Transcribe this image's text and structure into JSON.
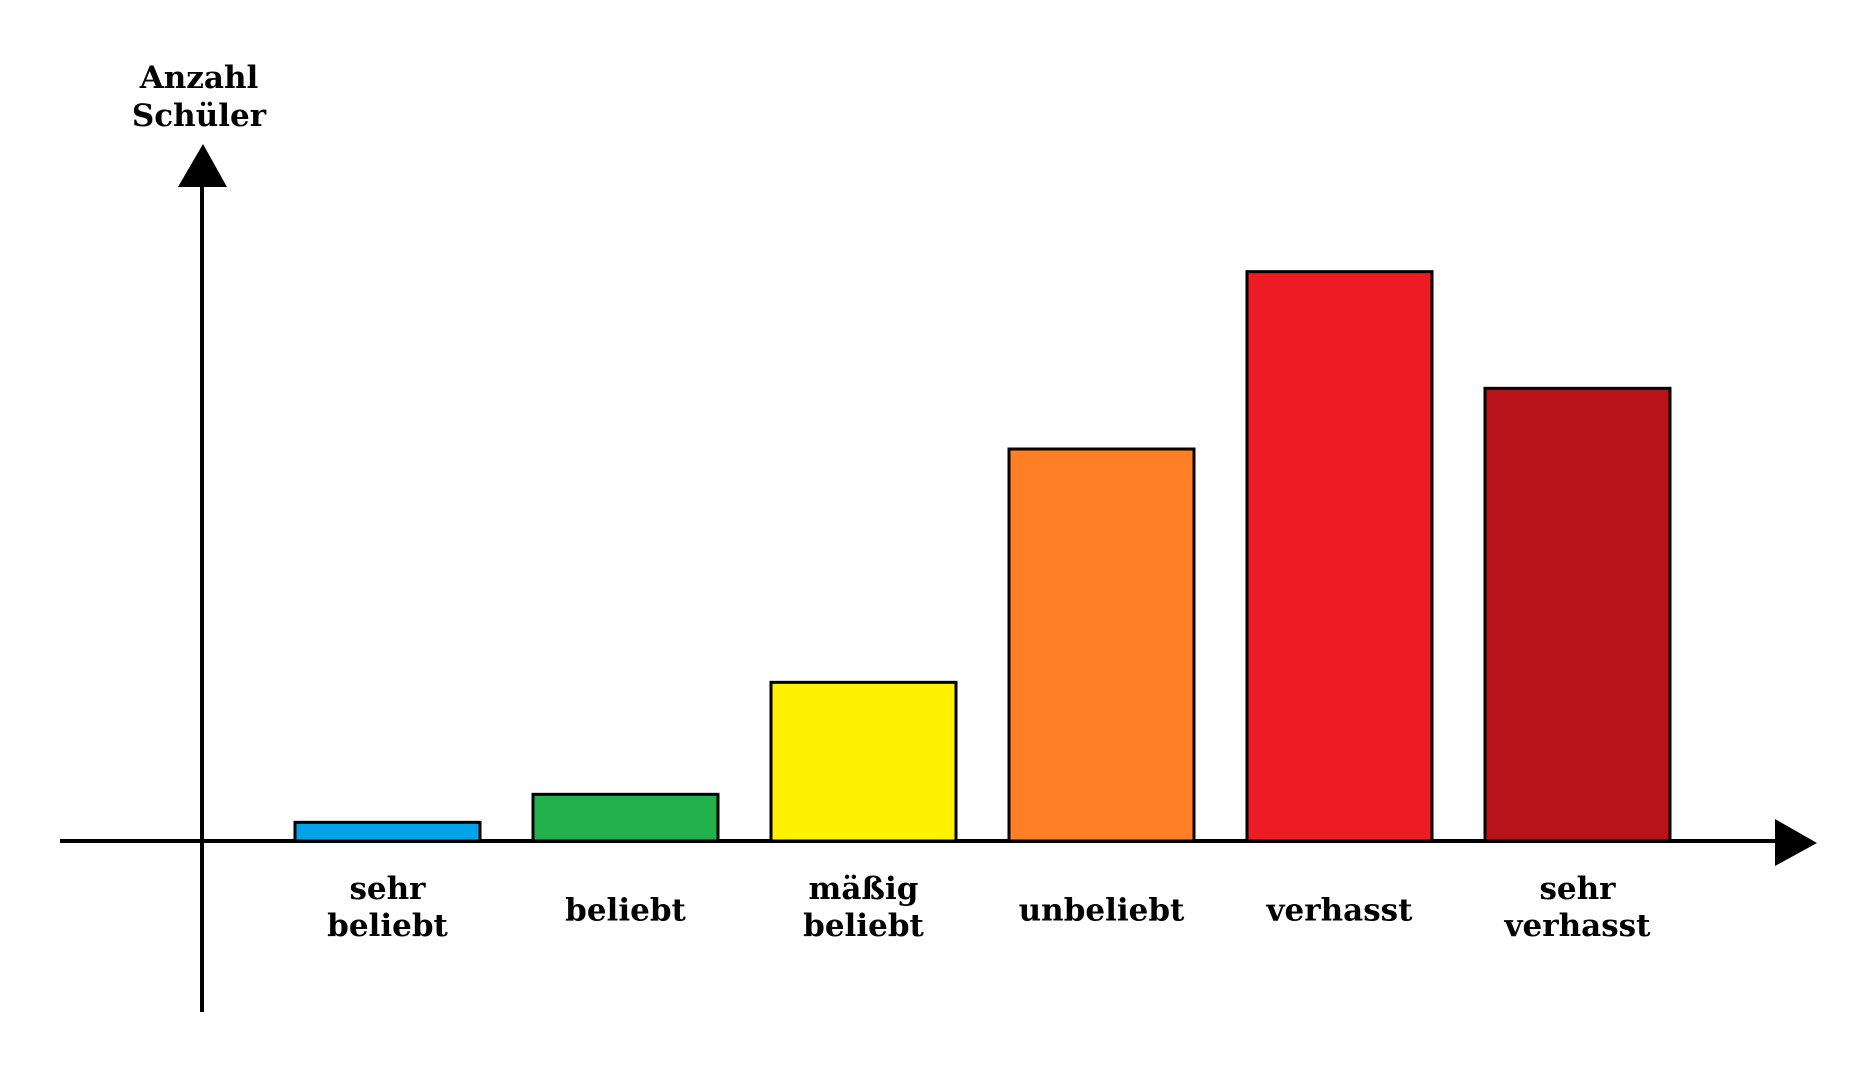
{
  "chart_data": {
    "type": "bar",
    "ylabel": [
      "Anzahl",
      "Schüler"
    ],
    "xlabel": "",
    "categories": [
      [
        "sehr",
        "beliebt"
      ],
      [
        "beliebt"
      ],
      [
        "mäßig",
        "beliebt"
      ],
      [
        "unbeliebt"
      ],
      [
        "verhasst"
      ],
      [
        "sehr",
        "verhasst"
      ]
    ],
    "values": [
      2,
      5,
      17,
      42,
      61,
      48.5
    ],
    "ylim": [
      0,
      75
    ],
    "y_ticks_shown": false,
    "grid": false,
    "legend": "none",
    "colors": [
      "#00A2E8",
      "#22B14C",
      "#FFF200",
      "#FF7F27",
      "#ED1C24",
      "#B9121B"
    ],
    "bar_outline": "#000000"
  }
}
